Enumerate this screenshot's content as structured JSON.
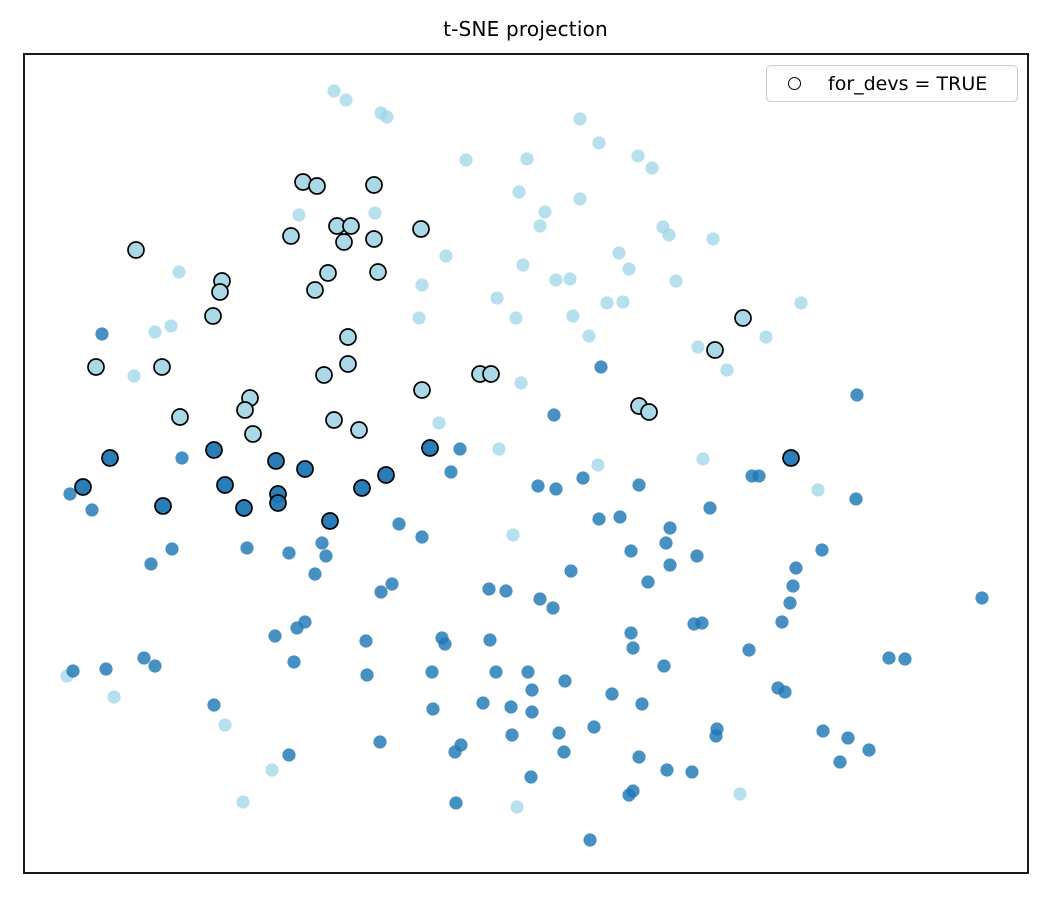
{
  "figure": {
    "background": "#ffffff",
    "plot_border_color": "#1a1a1a"
  },
  "chart_data": {
    "type": "scatter",
    "title": "t-SNE projection",
    "xlabel": "",
    "ylabel": "",
    "axes_visible": false,
    "tick_labels": "none",
    "grid": false,
    "coordinate_space": "screen pixels (y increases downward), plot frame x 23-1029, y 53-874",
    "legend": {
      "position": "upper right",
      "entries": [
        {
          "label": "for_devs = TRUE",
          "marker": "open-circle"
        }
      ]
    },
    "marker": {
      "radius": 6.6,
      "edged_radius": 8,
      "edge_color": "#000000",
      "edge_width": 1.7
    },
    "series": [
      {
        "name": "cluster_light",
        "for_devs": false,
        "color": "#9ed6e7",
        "fill_opacity": 0.75,
        "edged": false,
        "points": [
          [
            334,
            91
          ],
          [
            346,
            100
          ],
          [
            381,
            113
          ],
          [
            387,
            117
          ],
          [
            580,
            119
          ],
          [
            599,
            143
          ],
          [
            527,
            159
          ],
          [
            466,
            160
          ],
          [
            638,
            156
          ],
          [
            652,
            168
          ],
          [
            519,
            192
          ],
          [
            580,
            199
          ],
          [
            375,
            213
          ],
          [
            545,
            212
          ],
          [
            299,
            215
          ],
          [
            540,
            226
          ],
          [
            663,
            227
          ],
          [
            669,
            235
          ],
          [
            713,
            239
          ],
          [
            619,
            253
          ],
          [
            446,
            256
          ],
          [
            523,
            265
          ],
          [
            629,
            269
          ],
          [
            179,
            272
          ],
          [
            556,
            280
          ],
          [
            570,
            279
          ],
          [
            676,
            281
          ],
          [
            422,
            285
          ],
          [
            497,
            298
          ],
          [
            607,
            303
          ],
          [
            623,
            302
          ],
          [
            801,
            303
          ],
          [
            419,
            318
          ],
          [
            516,
            318
          ],
          [
            573,
            316
          ],
          [
            171,
            326
          ],
          [
            155,
            332
          ],
          [
            589,
            336
          ],
          [
            766,
            337
          ],
          [
            698,
            347
          ],
          [
            727,
            370
          ],
          [
            134,
            376
          ],
          [
            521,
            383
          ],
          [
            439,
            423
          ],
          [
            499,
            449
          ],
          [
            598,
            465
          ],
          [
            703,
            459
          ],
          [
            818,
            490
          ],
          [
            513,
            535
          ],
          [
            67,
            676
          ],
          [
            114,
            697
          ],
          [
            225,
            725
          ],
          [
            272,
            770
          ],
          [
            740,
            794
          ],
          [
            243,
            802
          ],
          [
            517,
            807
          ]
        ]
      },
      {
        "name": "cluster_light_for_devs",
        "for_devs": true,
        "color": "#aad8e6",
        "fill_opacity": 1,
        "edged": true,
        "points": [
          [
            303,
            182
          ],
          [
            317,
            186
          ],
          [
            374,
            185
          ],
          [
            337,
            226
          ],
          [
            351,
            226
          ],
          [
            421,
            229
          ],
          [
            291,
            236
          ],
          [
            374,
            239
          ],
          [
            344,
            242
          ],
          [
            136,
            250
          ],
          [
            378,
            272
          ],
          [
            222,
            281
          ],
          [
            328,
            273
          ],
          [
            315,
            290
          ],
          [
            220,
            292
          ],
          [
            213,
            316
          ],
          [
            743,
            318
          ],
          [
            348,
            337
          ],
          [
            715,
            350
          ],
          [
            348,
            364
          ],
          [
            96,
            367
          ],
          [
            162,
            367
          ],
          [
            324,
            375
          ],
          [
            480,
            374
          ],
          [
            491,
            374
          ],
          [
            422,
            390
          ],
          [
            250,
            398
          ],
          [
            639,
            406
          ],
          [
            245,
            410
          ],
          [
            649,
            412
          ],
          [
            180,
            417
          ],
          [
            334,
            420
          ],
          [
            359,
            430
          ],
          [
            253,
            434
          ]
        ]
      },
      {
        "name": "cluster_dark",
        "for_devs": false,
        "color": "#1f77b4",
        "fill_opacity": 0.82,
        "edged": false,
        "points": [
          [
            102,
            334
          ],
          [
            601,
            367
          ],
          [
            857,
            395
          ],
          [
            554,
            415
          ],
          [
            460,
            449
          ],
          [
            182,
            458
          ],
          [
            451,
            472
          ],
          [
            752,
            476
          ],
          [
            759,
            476
          ],
          [
            583,
            478
          ],
          [
            538,
            486
          ],
          [
            556,
            489
          ],
          [
            639,
            485
          ],
          [
            70,
            494
          ],
          [
            856,
            499
          ],
          [
            92,
            510
          ],
          [
            710,
            508
          ],
          [
            620,
            517
          ],
          [
            599,
            519
          ],
          [
            399,
            524
          ],
          [
            670,
            528
          ],
          [
            422,
            537
          ],
          [
            322,
            543
          ],
          [
            666,
            543
          ],
          [
            172,
            549
          ],
          [
            247,
            548
          ],
          [
            822,
            550
          ],
          [
            631,
            551
          ],
          [
            289,
            553
          ],
          [
            326,
            556
          ],
          [
            697,
            556
          ],
          [
            151,
            564
          ],
          [
            670,
            565
          ],
          [
            796,
            568
          ],
          [
            571,
            571
          ],
          [
            315,
            574
          ],
          [
            392,
            584
          ],
          [
            381,
            592
          ],
          [
            489,
            589
          ],
          [
            793,
            586
          ],
          [
            506,
            591
          ],
          [
            648,
            582
          ],
          [
            540,
            599
          ],
          [
            982,
            598
          ],
          [
            790,
            603
          ],
          [
            553,
            608
          ],
          [
            702,
            623
          ],
          [
            694,
            624
          ],
          [
            305,
            622
          ],
          [
            782,
            622
          ],
          [
            297,
            628
          ],
          [
            631,
            633
          ],
          [
            275,
            636
          ],
          [
            442,
            638
          ],
          [
            490,
            640
          ],
          [
            366,
            641
          ],
          [
            445,
            644
          ],
          [
            633,
            648
          ],
          [
            749,
            650
          ],
          [
            144,
            658
          ],
          [
            294,
            662
          ],
          [
            155,
            666
          ],
          [
            664,
            666
          ],
          [
            905,
            659
          ],
          [
            889,
            658
          ],
          [
            106,
            669
          ],
          [
            73,
            671
          ],
          [
            432,
            672
          ],
          [
            496,
            672
          ],
          [
            528,
            672
          ],
          [
            367,
            675
          ],
          [
            565,
            681
          ],
          [
            778,
            688
          ],
          [
            532,
            690
          ],
          [
            785,
            692
          ],
          [
            612,
            694
          ],
          [
            483,
            703
          ],
          [
            642,
            704
          ],
          [
            214,
            705
          ],
          [
            511,
            707
          ],
          [
            433,
            709
          ],
          [
            532,
            712
          ],
          [
            716,
            736
          ],
          [
            717,
            729
          ],
          [
            594,
            727
          ],
          [
            823,
            731
          ],
          [
            848,
            738
          ],
          [
            512,
            735
          ],
          [
            559,
            733
          ],
          [
            380,
            742
          ],
          [
            461,
            745
          ],
          [
            869,
            750
          ],
          [
            455,
            752
          ],
          [
            564,
            752
          ],
          [
            289,
            755
          ],
          [
            639,
            757
          ],
          [
            840,
            762
          ],
          [
            667,
            770
          ],
          [
            692,
            772
          ],
          [
            531,
            777
          ],
          [
            633,
            791
          ],
          [
            629,
            795
          ],
          [
            456,
            803
          ],
          [
            590,
            840
          ]
        ]
      },
      {
        "name": "cluster_dark_for_devs",
        "for_devs": true,
        "color": "#1f77b4",
        "fill_opacity": 0.95,
        "edged": true,
        "points": [
          [
            430,
            448
          ],
          [
            214,
            450
          ],
          [
            110,
            458
          ],
          [
            276,
            461
          ],
          [
            305,
            469
          ],
          [
            386,
            475
          ],
          [
            225,
            485
          ],
          [
            83,
            487
          ],
          [
            362,
            488
          ],
          [
            278,
            494
          ],
          [
            278,
            503
          ],
          [
            163,
            506
          ],
          [
            244,
            508
          ],
          [
            330,
            521
          ],
          [
            791,
            458
          ]
        ]
      }
    ]
  }
}
